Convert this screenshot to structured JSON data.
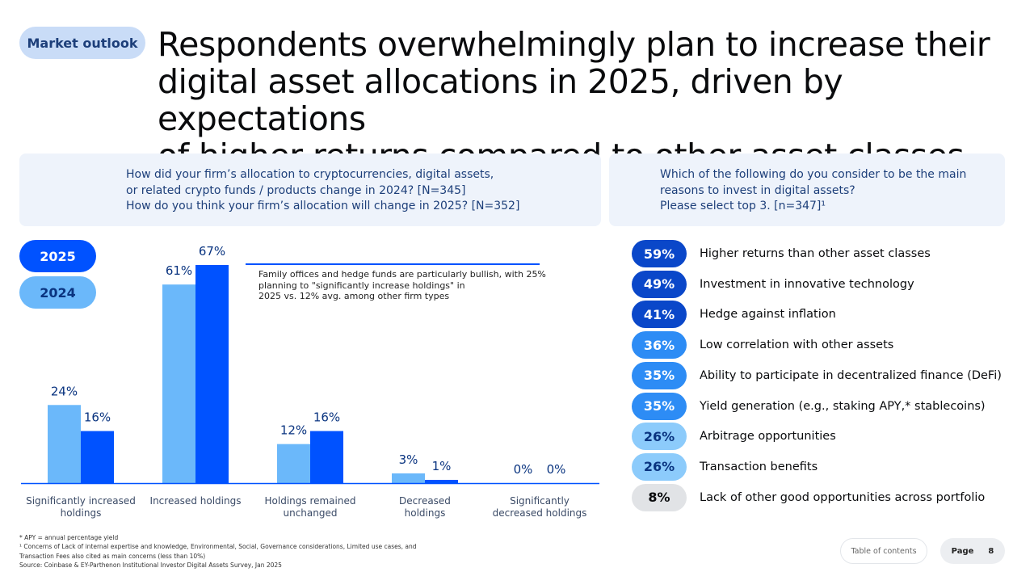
{
  "header": {
    "tag": "Market outlook",
    "title_lines": [
      "Respondents overwhelmingly plan to increase their",
      "digital asset allocations in 2025, driven by expectations",
      "of higher returns compared to other asset classes"
    ]
  },
  "left_question": {
    "lines": [
      "How did your firm’s allocation to cryptocurrencies, digital assets,",
      "or related crypto funds / products change in 2024? [N=345]",
      "How do you think your firm’s allocation will change in 2025? [N=352]"
    ]
  },
  "right_question": {
    "lines": [
      "Which of the following do you consider to be the main",
      "reasons to invest in digital assets?",
      "Please select top 3. [n=347]¹"
    ]
  },
  "legend": {
    "y2025": "2025",
    "y2024": "2024"
  },
  "annotation": {
    "lines": [
      "Family offices and hedge funds are particularly bullish, with 25%",
      "planning to \"significantly increase holdings\" in",
      "2025 vs. 12% avg. among other firm types"
    ]
  },
  "chart_data": {
    "type": "bar",
    "categories": [
      [
        "Significantly increased",
        "holdings"
      ],
      [
        "Increased holdings"
      ],
      [
        "Holdings remained",
        "unchanged"
      ],
      [
        "Decreased",
        "holdings"
      ],
      [
        "Significantly",
        "decreased holdings"
      ]
    ],
    "series": [
      {
        "name": "2024",
        "values": [
          24,
          61,
          12,
          3,
          0
        ],
        "labels": [
          "24%",
          "61%",
          "12%",
          "3%",
          "0%"
        ],
        "color": "#6bb8fa"
      },
      {
        "name": "2025",
        "values": [
          16,
          67,
          16,
          1,
          0
        ],
        "labels": [
          "16%",
          "67%",
          "16%",
          "1%",
          "0%"
        ],
        "color": "#0052ff"
      }
    ],
    "ylim": [
      0,
      67
    ],
    "colors": {
      "label": "#0a3480",
      "axis": "#0052ff",
      "category": "#3a4a66"
    }
  },
  "reasons": [
    {
      "pct": "59%",
      "label": "Higher returns than other asset classes",
      "bg": "#0a47c9",
      "fg": "#ffffff"
    },
    {
      "pct": "49%",
      "label": "Investment in innovative technology",
      "bg": "#0a47c9",
      "fg": "#ffffff"
    },
    {
      "pct": "41%",
      "label": "Hedge against inflation",
      "bg": "#0a47c9",
      "fg": "#ffffff"
    },
    {
      "pct": "36%",
      "label": "Low correlation with other assets",
      "bg": "#2d8cf5",
      "fg": "#ffffff"
    },
    {
      "pct": "35%",
      "label": "Ability to participate in decentralized finance (DeFi)",
      "bg": "#2d8cf5",
      "fg": "#ffffff"
    },
    {
      "pct": "35%",
      "label": "Yield generation (e.g., staking APY,* stablecoins)",
      "bg": "#2d8cf5",
      "fg": "#ffffff"
    },
    {
      "pct": "26%",
      "label": "Arbitrage opportunities",
      "bg": "#8ccbfb",
      "fg": "#0a3480"
    },
    {
      "pct": "26%",
      "label": "Transaction benefits",
      "bg": "#8ccbfb",
      "fg": "#0a3480"
    },
    {
      "pct": "8%",
      "label": "Lack of other good opportunities across portfolio",
      "bg": "#e1e3e6",
      "fg": "#0a0b0d"
    }
  ],
  "footnotes": [
    "* APY = annual percentage yield",
    "¹ Concerns of Lack of internal expertise and knowledge, Environmental, Social, Governance considerations, Limited use cases, and",
    "Transaction Fees also cited as main concerns (less than 10%)",
    "Source: Coinbase & EY-Parthenon Institutional Investor Digital Assets Survey, Jan 2025"
  ],
  "footer": {
    "toc_label": "Table of contents",
    "page_label": "Page",
    "page_number": "8"
  }
}
